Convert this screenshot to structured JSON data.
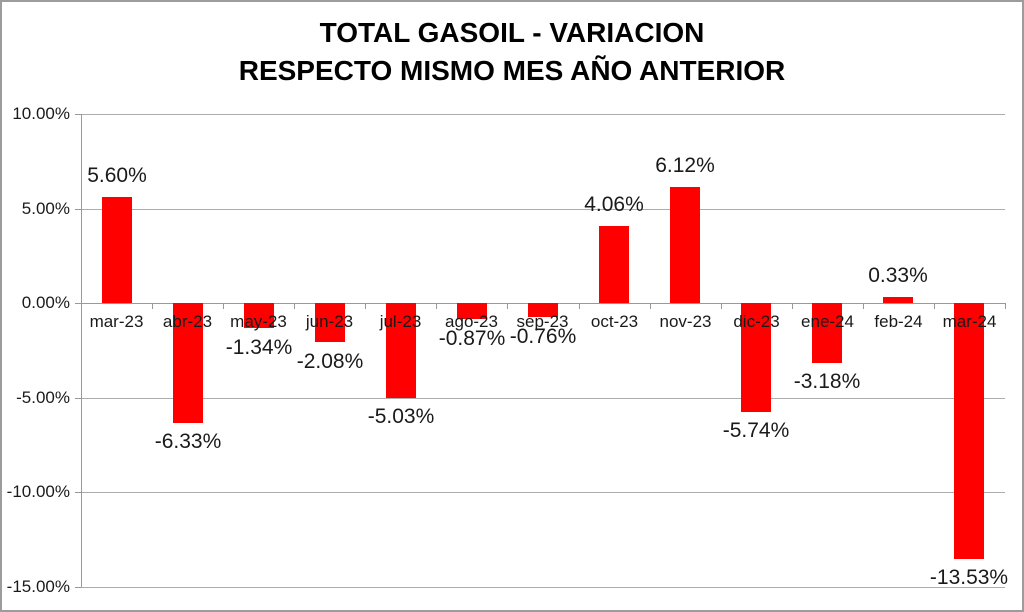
{
  "chart_data": {
    "type": "bar",
    "title_lines": [
      "TOTAL GASOIL - VARIACION",
      "RESPECTO MISMO MES AÑO ANTERIOR"
    ],
    "categories": [
      "mar-23",
      "abr-23",
      "may-23",
      "jun-23",
      "jul-23",
      "ago-23",
      "sep-23",
      "oct-23",
      "nov-23",
      "dic-23",
      "ene-24",
      "feb-24",
      "mar-24"
    ],
    "values": [
      5.6,
      -6.33,
      -1.34,
      -2.08,
      -5.03,
      -0.87,
      -0.76,
      4.06,
      6.12,
      -5.74,
      -3.18,
      0.33,
      -13.53
    ],
    "value_labels": [
      "5.60%",
      "-6.33%",
      "-1.34%",
      "-2.08%",
      "-5.03%",
      "-0.87%",
      "-0.76%",
      "4.06%",
      "6.12%",
      "-5.74%",
      "-3.18%",
      "0.33%",
      "-13.53%"
    ],
    "xlabel": "",
    "ylabel": "",
    "ylim": [
      -15,
      10
    ],
    "ytick_step": 5,
    "yticks": [
      {
        "value": 10,
        "label": "10.00%"
      },
      {
        "value": 5,
        "label": "5.00%"
      },
      {
        "value": 0,
        "label": "0.00%"
      },
      {
        "value": -5,
        "label": "-5.00%"
      },
      {
        "value": -10,
        "label": "-10.00%"
      },
      {
        "value": -15,
        "label": "-15.00%"
      }
    ],
    "grid": true,
    "legend": "none",
    "colors": {
      "bar": "#FF0000",
      "gridline": "#ACACAC",
      "axis": "#999999",
      "label_text": "#1A1A1A",
      "title_text": "#000000",
      "frame_border": "#9C9C9C",
      "background": "#FFFFFF"
    }
  }
}
